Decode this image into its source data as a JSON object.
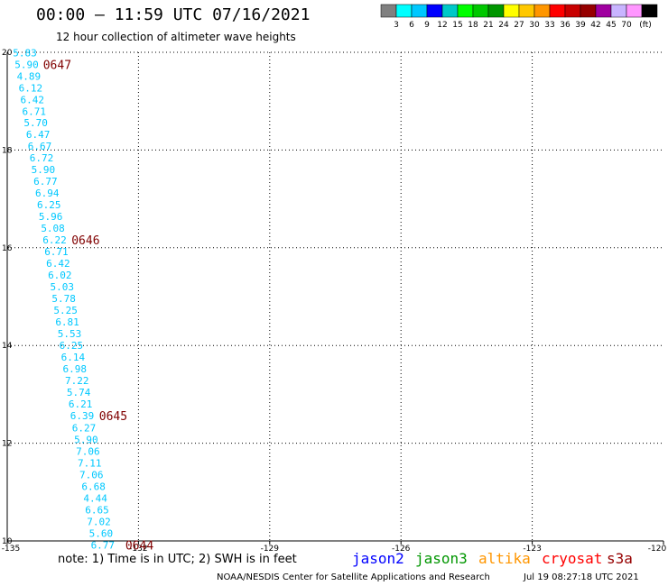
{
  "header": {
    "title": "00:00 – 11:59 UTC 07/16/2021",
    "subtitle": "12 hour collection of altimeter wave heights"
  },
  "footer": {
    "note": "note: 1) Time is in UTC; 2) SWH is in feet",
    "credit": "NOAA/NESDIS Center for Satellite Applications and Research",
    "generated": "Jul 19 08:27:18 UTC 2021"
  },
  "legend": {
    "colors": [
      "#808080",
      "#00ffff",
      "#00c8ff",
      "#0000ff",
      "#00c8c8",
      "#00ff00",
      "#00c800",
      "#009600",
      "#ffff00",
      "#ffc800",
      "#ff9600",
      "#ff0000",
      "#c80000",
      "#960000",
      "#a000a0",
      "#c8b4ff",
      "#ff96ff",
      "#000000"
    ],
    "labels": [
      "3",
      "6",
      "9",
      "12",
      "15",
      "18",
      "21",
      "24",
      "27",
      "30",
      "33",
      "36",
      "39",
      "42",
      "45",
      "70"
    ],
    "unit": "(ft)"
  },
  "satellites": [
    {
      "name": "jason2",
      "color": "#0000ff"
    },
    {
      "name": "jason3",
      "color": "#009600"
    },
    {
      "name": "altika",
      "color": "#ff9600"
    },
    {
      "name": "cryosat",
      "color": "#ff0000"
    },
    {
      "name": "s3a",
      "color": "#960000"
    }
  ],
  "chart_data": {
    "type": "scatter",
    "title": "00:00 – 11:59 UTC 07/16/2021",
    "subtitle": "12 hour collection of altimeter wave heights",
    "xlim": [
      -135,
      -120
    ],
    "ylim": [
      10,
      20
    ],
    "x_ticks": [
      "-135",
      "-132",
      "-129",
      "-126",
      "-123",
      "-120"
    ],
    "y_ticks": [
      "20",
      "18",
      "16",
      "14",
      "12",
      "10"
    ],
    "x_tick_values": [
      -135,
      -132,
      -129,
      -126,
      -123,
      -120
    ],
    "y_tick_values": [
      20,
      18,
      16,
      14,
      12,
      10
    ],
    "grid": true,
    "swh_color": "#00c8ff",
    "time_color": "#800000",
    "points": [
      {
        "lon": -134.87,
        "lat": 19.99,
        "swh": "5.83"
      },
      {
        "lon": -134.83,
        "lat": 19.75,
        "swh": "5.90"
      },
      {
        "lon": -134.78,
        "lat": 19.51,
        "swh": "4.89"
      },
      {
        "lon": -134.74,
        "lat": 19.27,
        "swh": "6.12"
      },
      {
        "lon": -134.7,
        "lat": 19.03,
        "swh": "6.42"
      },
      {
        "lon": -134.66,
        "lat": 18.79,
        "swh": "6.71"
      },
      {
        "lon": -134.62,
        "lat": 18.56,
        "swh": "5.70"
      },
      {
        "lon": -134.57,
        "lat": 18.32,
        "swh": "6.47"
      },
      {
        "lon": -134.53,
        "lat": 18.08,
        "swh": "6.67"
      },
      {
        "lon": -134.49,
        "lat": 17.84,
        "swh": "6.72"
      },
      {
        "lon": -134.45,
        "lat": 17.6,
        "swh": "5.90"
      },
      {
        "lon": -134.4,
        "lat": 17.36,
        "swh": "6.77"
      },
      {
        "lon": -134.36,
        "lat": 17.12,
        "swh": "6.94"
      },
      {
        "lon": -134.32,
        "lat": 16.88,
        "swh": "6.25"
      },
      {
        "lon": -134.28,
        "lat": 16.64,
        "swh": "5.96"
      },
      {
        "lon": -134.23,
        "lat": 16.4,
        "swh": "5.08"
      },
      {
        "lon": -134.19,
        "lat": 16.16,
        "swh": "6.22"
      },
      {
        "lon": -134.15,
        "lat": 15.92,
        "swh": "6.71"
      },
      {
        "lon": -134.11,
        "lat": 15.68,
        "swh": "6.42"
      },
      {
        "lon": -134.07,
        "lat": 15.44,
        "swh": "6.02"
      },
      {
        "lon": -134.02,
        "lat": 15.2,
        "swh": "5.03"
      },
      {
        "lon": -133.98,
        "lat": 14.96,
        "swh": "5.78"
      },
      {
        "lon": -133.94,
        "lat": 14.72,
        "swh": "5.25"
      },
      {
        "lon": -133.9,
        "lat": 14.48,
        "swh": "6.81"
      },
      {
        "lon": -133.85,
        "lat": 14.24,
        "swh": "5.53"
      },
      {
        "lon": -133.81,
        "lat": 14.0,
        "swh": "6.25"
      },
      {
        "lon": -133.77,
        "lat": 13.76,
        "swh": "6.14"
      },
      {
        "lon": -133.73,
        "lat": 13.52,
        "swh": "6.98"
      },
      {
        "lon": -133.68,
        "lat": 13.28,
        "swh": "7.22"
      },
      {
        "lon": -133.64,
        "lat": 13.04,
        "swh": "5.74"
      },
      {
        "lon": -133.6,
        "lat": 12.8,
        "swh": "6.21"
      },
      {
        "lon": -133.56,
        "lat": 12.56,
        "swh": "6.39"
      },
      {
        "lon": -133.52,
        "lat": 12.32,
        "swh": "6.27"
      },
      {
        "lon": -133.47,
        "lat": 12.08,
        "swh": "5.90"
      },
      {
        "lon": -133.43,
        "lat": 11.84,
        "swh": "7.06"
      },
      {
        "lon": -133.39,
        "lat": 11.6,
        "swh": "7.11"
      },
      {
        "lon": -133.35,
        "lat": 11.36,
        "swh": "7.06"
      },
      {
        "lon": -133.3,
        "lat": 11.12,
        "swh": "6.68"
      },
      {
        "lon": -133.26,
        "lat": 10.88,
        "swh": "4.44"
      },
      {
        "lon": -133.22,
        "lat": 10.64,
        "swh": "6.65"
      },
      {
        "lon": -133.18,
        "lat": 10.4,
        "swh": "7.02"
      },
      {
        "lon": -133.13,
        "lat": 10.16,
        "swh": "5.60"
      },
      {
        "lon": -133.09,
        "lat": 9.92,
        "swh": "6.77"
      }
    ],
    "time_labels": [
      {
        "lon": -134.18,
        "lat": 19.75,
        "text": "0647"
      },
      {
        "lon": -133.53,
        "lat": 16.16,
        "text": "0646"
      },
      {
        "lon": -132.9,
        "lat": 12.56,
        "text": "0645"
      },
      {
        "lon": -132.3,
        "lat": 9.92,
        "text": "0644"
      }
    ]
  }
}
